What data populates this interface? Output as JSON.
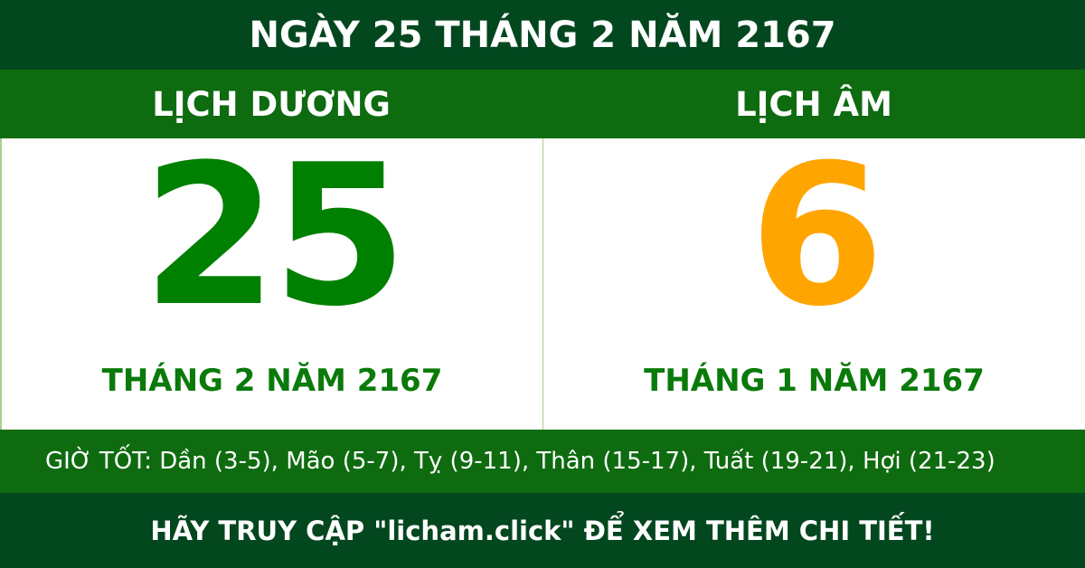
{
  "header": {
    "title": "NGÀY 25 THÁNG 2 NĂM 2167"
  },
  "solar": {
    "label": "LỊCH DƯƠNG",
    "day": "25",
    "month_year": "THÁNG 2 NĂM 2167",
    "color": "#008000"
  },
  "lunar": {
    "label": "LỊCH ÂM",
    "day": "6",
    "month_year": "THÁNG 1 NĂM 2167",
    "color": "#ffa500"
  },
  "good_hours": "GIỜ TỐT: Dần (3-5), Mão (5-7), Tỵ (9-11), Thân (15-17), Tuất (19-21), Hợi (21-23)",
  "footer": "HÃY TRUY CẬP \"licham.click\" ĐỂ XEM THÊM CHI TIẾT!"
}
